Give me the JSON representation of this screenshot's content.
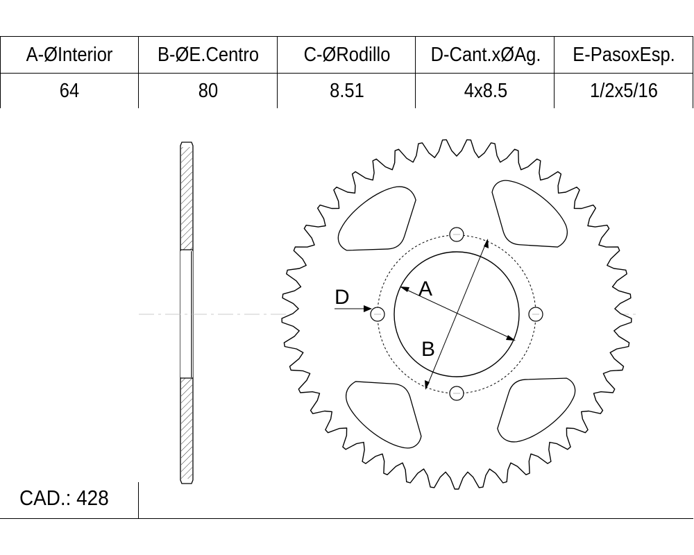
{
  "spec_table": {
    "headers": [
      "A-ØInterior",
      "B-ØE.Centro",
      "C-ØRodillo",
      "D-Cant.xØAg.",
      "E-PasoxEsp."
    ],
    "values": [
      "64",
      "80",
      "8.51",
      "4x8.5",
      "1/2x5/16"
    ]
  },
  "drawing": {
    "label_a": "A",
    "label_b": "B",
    "label_d": "D"
  },
  "cad": {
    "label": "CAD.: 428"
  }
}
